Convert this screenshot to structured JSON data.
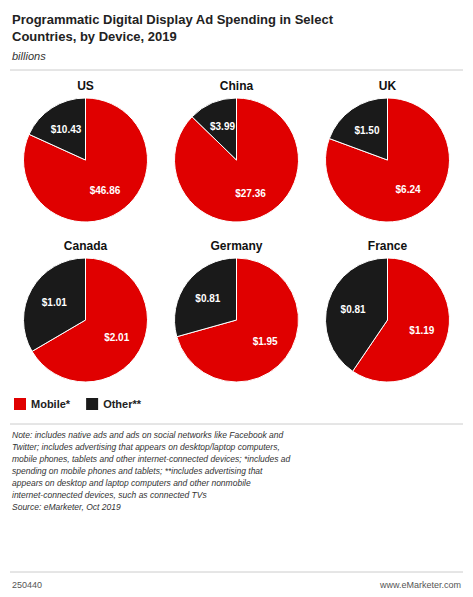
{
  "title": "Programmatic Digital Display Ad Spending in Select\nCountries, by Device, 2019",
  "subtitle": "billions",
  "legend": "bottom",
  "annotations": [
    "Note: includes native ads and ads on social networks like Facebook and\nTwitter; includes advertising that appears on desktop/laptop computers,\nmobile phones, tablets and other internet-connected devices; *includes ad\nspending on mobile phones and tablets; **includes advertising that\nappears on desktop and laptop computers and other nonmobile\ninternet-connected devices, such as connected TVs\nSource: eMarketer, Oct 2019",
    "250440",
    "www.eMarketer.com"
  ],
  "chart_data": [
    {
      "type": "pie",
      "title": "US",
      "categories": [
        "Mobile*",
        "Other**"
      ],
      "values": [
        46.86,
        10.43
      ],
      "value_labels": [
        "$46.86",
        "$10.43"
      ],
      "colors": [
        "#e00000",
        "#1a1a1a"
      ],
      "data_labels": true
    },
    {
      "type": "pie",
      "title": "China",
      "categories": [
        "Mobile*",
        "Other**"
      ],
      "values": [
        27.36,
        3.99
      ],
      "value_labels": [
        "$27.36",
        "$3.99"
      ],
      "colors": [
        "#e00000",
        "#1a1a1a"
      ],
      "data_labels": true
    },
    {
      "type": "pie",
      "title": "UK",
      "categories": [
        "Mobile*",
        "Other**"
      ],
      "values": [
        6.24,
        1.5
      ],
      "value_labels": [
        "$6.24",
        "$1.50"
      ],
      "colors": [
        "#e00000",
        "#1a1a1a"
      ],
      "data_labels": true
    },
    {
      "type": "pie",
      "title": "Canada",
      "categories": [
        "Mobile*",
        "Other**"
      ],
      "values": [
        2.01,
        1.01
      ],
      "value_labels": [
        "$2.01",
        "$1.01"
      ],
      "colors": [
        "#e00000",
        "#1a1a1a"
      ],
      "data_labels": true
    },
    {
      "type": "pie",
      "title": "Germany",
      "categories": [
        "Mobile*",
        "Other**"
      ],
      "values": [
        1.95,
        0.81
      ],
      "value_labels": [
        "$1.95",
        "$0.81"
      ],
      "colors": [
        "#e00000",
        "#1a1a1a"
      ],
      "data_labels": true
    },
    {
      "type": "pie",
      "title": "France",
      "categories": [
        "Mobile*",
        "Other**"
      ],
      "values": [
        1.19,
        0.81
      ],
      "value_labels": [
        "$1.19",
        "$0.81"
      ],
      "colors": [
        "#e00000",
        "#1a1a1a"
      ],
      "data_labels": true
    }
  ]
}
